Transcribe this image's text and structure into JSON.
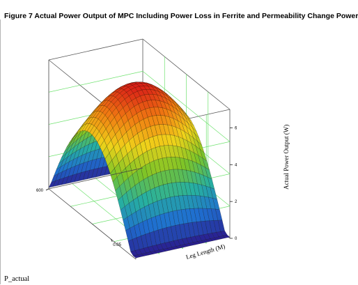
{
  "figure": {
    "title": "Figure 7   Actual Power Output of MPC Including Power Loss in Ferrite and Permeability Change Power",
    "footer": "P_actual"
  },
  "chart_data": {
    "type": "surface3d",
    "title": "Figure 7   Actual Power Output of MPC Including Power Loss in Ferrite and Permeability Change Power",
    "xlabel": "Leg Length (M)",
    "ylabel": "",
    "zlabel": "Actual Power Output (W)",
    "x_range": [
      0,
      0.07
    ],
    "y_range": [
      300,
      600
    ],
    "z_range": [
      0,
      7
    ],
    "x_ticks": [
      "0.05"
    ],
    "y_ticks": [
      "600"
    ],
    "z_ticks": [
      "0",
      "2",
      "4",
      "6"
    ],
    "grid": true,
    "colormap": [
      "#2a1a8c",
      "#1f6fd0",
      "#27b0a0",
      "#7cc427",
      "#f0d21a",
      "#f07a12",
      "#d81818"
    ],
    "surface_description_points": [
      {
        "x": 0.0,
        "y": 600,
        "z": 0.1
      },
      {
        "x": 0.035,
        "y": 450,
        "z": 7.0
      },
      {
        "x": 0.07,
        "y": 300,
        "z": 1.5
      }
    ]
  }
}
